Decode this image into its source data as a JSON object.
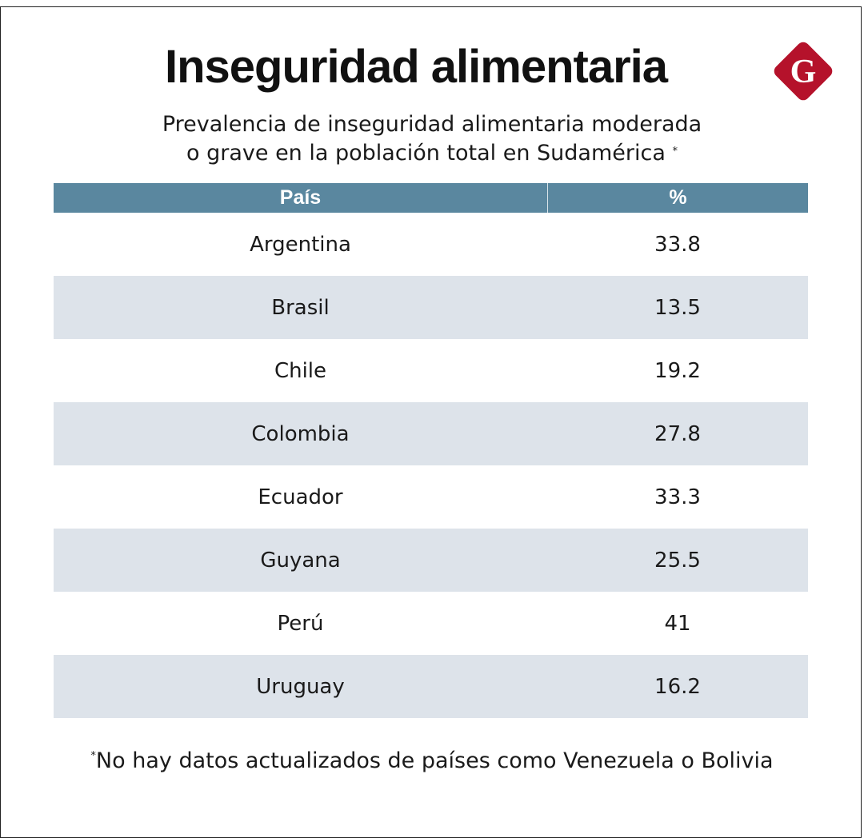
{
  "title": "Inseguridad alimentaria",
  "subtitle_line1": "Prevalencia de inseguridad alimentaria moderada",
  "subtitle_line2": "o grave en la población total en Sudamérica",
  "asterisk": "*",
  "logo_letter": "G",
  "colors": {
    "header": "#5a879f",
    "stripe": "#dde3ea",
    "logo": "#b5122b"
  },
  "footnote": "No hay datos actualizados de países como Venezuela o Bolivia",
  "chart_data": {
    "type": "table",
    "columns": [
      "País",
      "%"
    ],
    "rows": [
      [
        "Argentina",
        "33.8"
      ],
      [
        "Brasil",
        "13.5"
      ],
      [
        "Chile",
        "19.2"
      ],
      [
        "Colombia",
        "27.8"
      ],
      [
        "Ecuador",
        "33.3"
      ],
      [
        "Guyana",
        "25.5"
      ],
      [
        "Perú",
        "41"
      ],
      [
        "Uruguay",
        "16.2"
      ]
    ]
  }
}
